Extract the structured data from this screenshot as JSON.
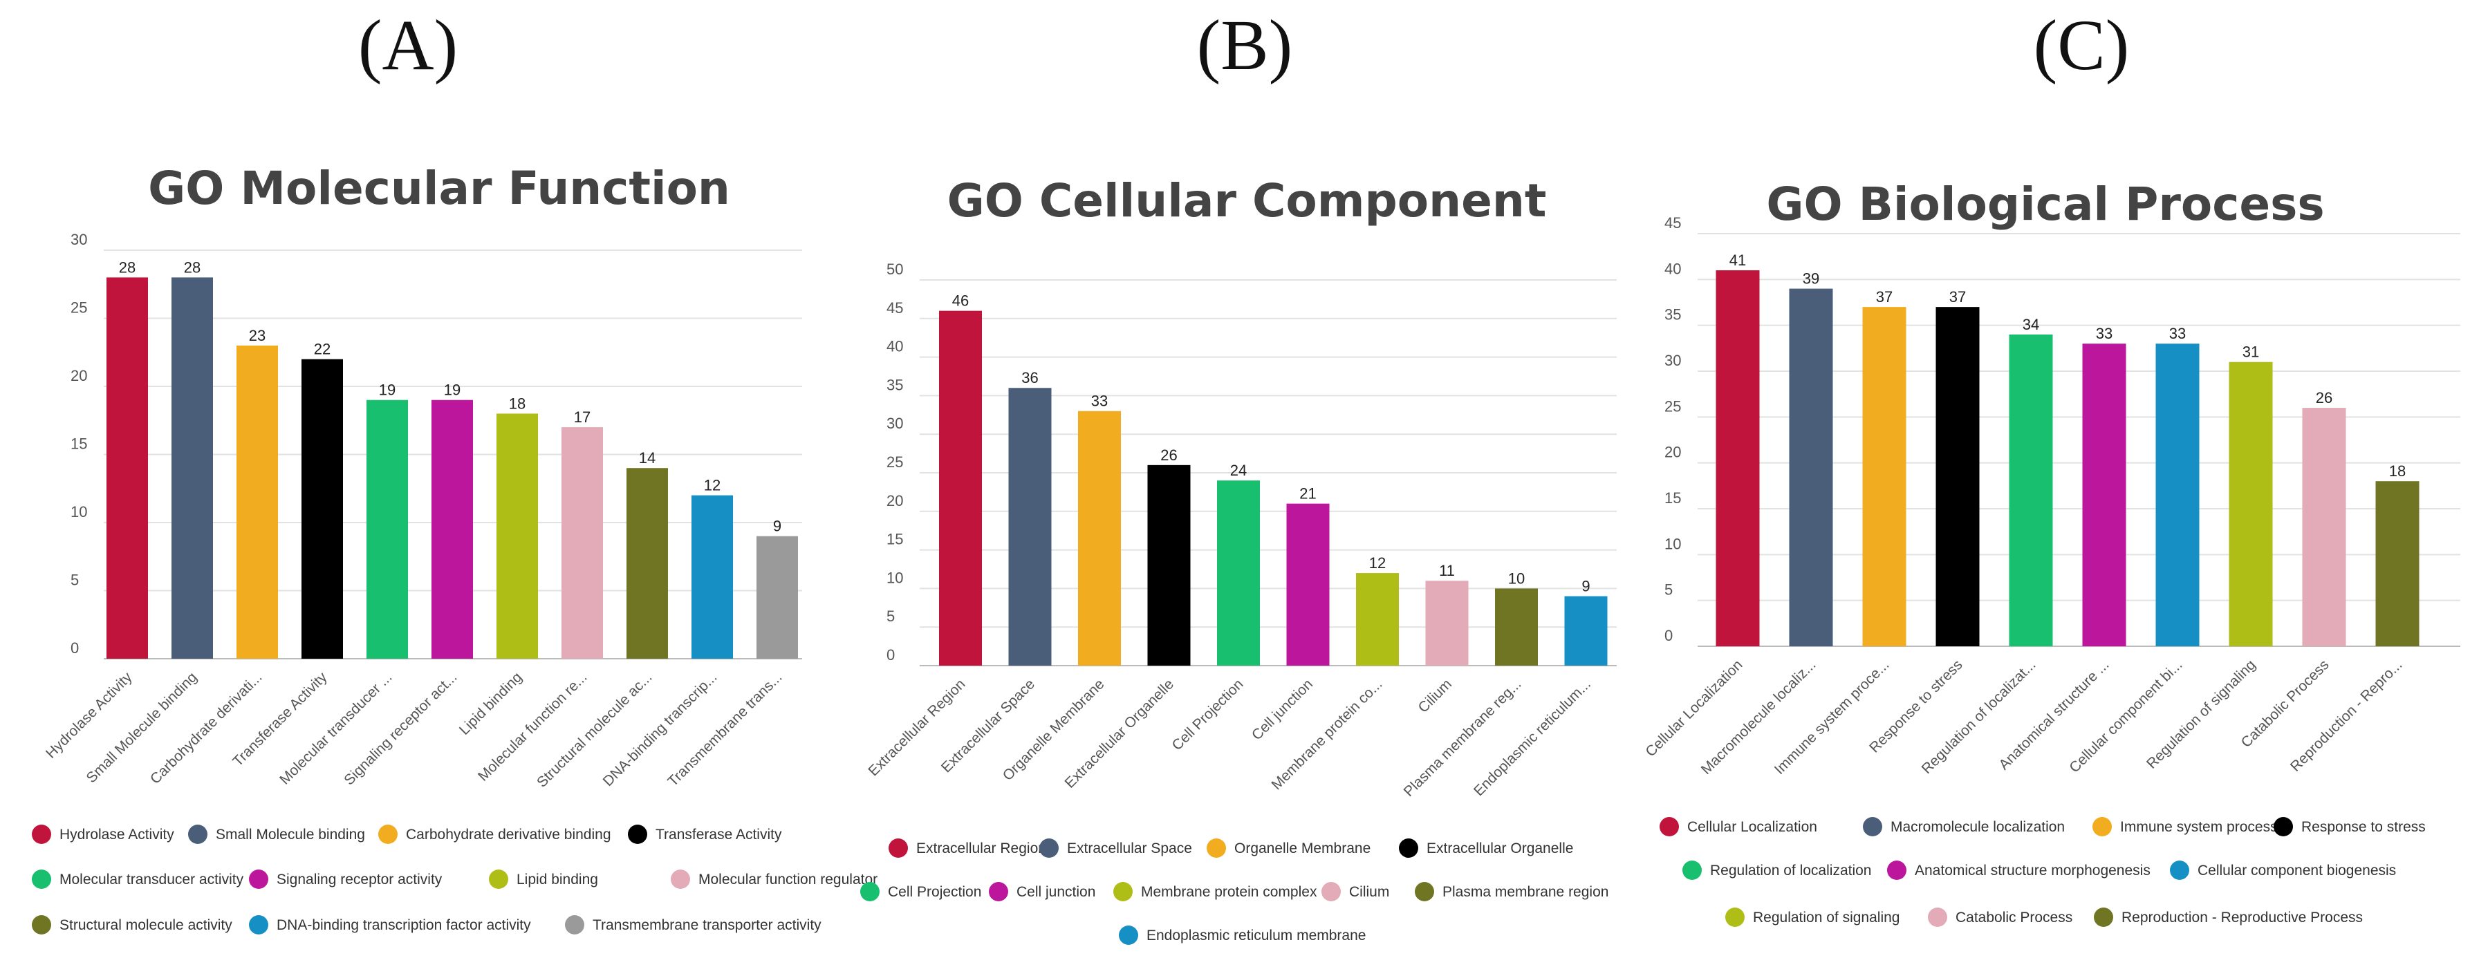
{
  "panels": [
    "(A)",
    "(B)",
    "(C)"
  ],
  "chart_data": [
    {
      "type": "bar",
      "title": "GO Molecular Function",
      "ylim": [
        0,
        30
      ],
      "yticks": [
        0,
        5,
        10,
        15,
        20,
        25,
        30
      ],
      "categories": [
        "Hydrolase Activity",
        "Small Molecule binding",
        "Carbohydrate derivati...",
        "Transferase Activity",
        "Molecular transducer ...",
        "Signaling receptor act...",
        "Lipid binding",
        "Molecular function re...",
        "Structural molecule ac...",
        "DNA-binding transcrip...",
        "Transmembrane trans..."
      ],
      "values": [
        28,
        28,
        23,
        22,
        19,
        19,
        18,
        17,
        14,
        12,
        9
      ],
      "colors": [
        "#c0143c",
        "#4a5e7a",
        "#f2ac1f",
        "#000000",
        "#17bf6e",
        "#bb169c",
        "#afbe16",
        "#e3aab7",
        "#6f7522",
        "#1690c4",
        "#9a9a9a"
      ],
      "legend": [
        "Hydrolase Activity",
        "Small Molecule binding",
        "Carbohydrate derivative binding",
        "Transferase Activity",
        "Molecular transducer activity",
        "Signaling receptor activity",
        "Lipid binding",
        "Molecular function regulator",
        "Structural molecule activity",
        "DNA-binding transcription factor activity",
        "Transmembrane transporter activity"
      ]
    },
    {
      "type": "bar",
      "title": "GO Cellular Component",
      "ylim": [
        0,
        50
      ],
      "yticks": [
        0,
        5,
        10,
        15,
        20,
        25,
        30,
        35,
        40,
        45,
        50
      ],
      "categories": [
        "Extracellular Region",
        "Extracellular Space",
        "Organelle Membrane",
        "Extracellular Organelle",
        "Cell Projection",
        "Cell junction",
        "Membrane protein co...",
        "Cilium",
        "Plasma membrane reg...",
        "Endoplasmic reticulum..."
      ],
      "values": [
        46,
        36,
        33,
        26,
        24,
        21,
        12,
        11,
        10,
        9
      ],
      "colors": [
        "#c0143c",
        "#4a5e7a",
        "#f2ac1f",
        "#000000",
        "#17bf6e",
        "#bb169c",
        "#afbe16",
        "#e3aab7",
        "#6f7522",
        "#1690c4"
      ],
      "legend": [
        "Extracellular Region",
        "Extracellular Space",
        "Organelle Membrane",
        "Extracellular Organelle",
        "Cell Projection",
        "Cell junction",
        "Membrane protein complex",
        "Cilium",
        "Plasma membrane region",
        "Endoplasmic reticulum membrane"
      ]
    },
    {
      "type": "bar",
      "title": "GO Biological Process",
      "ylim": [
        0,
        45
      ],
      "yticks": [
        0,
        5,
        10,
        15,
        20,
        25,
        30,
        35,
        40,
        45
      ],
      "categories": [
        "Cellular Localization",
        "Macromolecule localiz...",
        "Immune system proce...",
        "Response to stress",
        "Regulation of localizat...",
        "Anatomical structure ...",
        "Cellular component bi...",
        "Regulation of signaling",
        "Catabolic Process",
        "Reproduction - Repro..."
      ],
      "values": [
        41,
        39,
        37,
        37,
        34,
        33,
        33,
        31,
        26,
        18
      ],
      "colors": [
        "#c0143c",
        "#4a5e7a",
        "#f2ac1f",
        "#000000",
        "#17bf6e",
        "#bb169c",
        "#1690c4",
        "#afbe16",
        "#e3aab7",
        "#6f7522"
      ],
      "legend": [
        "Cellular Localization",
        "Macromolecule localization",
        "Immune system process",
        "Response to stress",
        "Regulation of localization",
        "Anatomical structure morphogenesis",
        "Cellular component biogenesis",
        "Regulation of signaling",
        "Catabolic Process",
        "Reproduction - Reproductive Process"
      ]
    }
  ]
}
